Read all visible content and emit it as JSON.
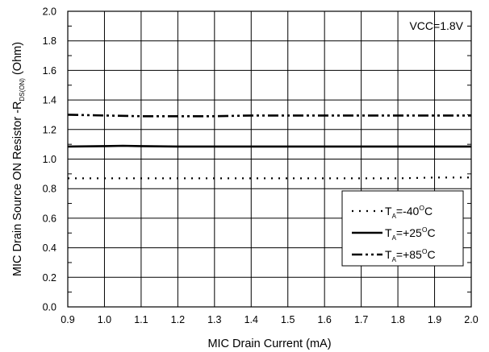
{
  "chart_data": {
    "type": "line",
    "xlabel": "MIC Drain Current (mA)",
    "ylabel": {
      "main": "MIC Drain Source ON Resistor -R",
      "sub": "DS(ON)",
      "unit": " (Ohm)"
    },
    "annotation": "VCC=1.8V",
    "xlim": [
      0.9,
      2.0
    ],
    "ylim": [
      0.0,
      2.0
    ],
    "xticks": [
      "0.9",
      "1.0",
      "1.1",
      "1.2",
      "1.3",
      "1.4",
      "1.5",
      "1.6",
      "1.7",
      "1.8",
      "1.9",
      "2.0"
    ],
    "yticks": [
      "0.0",
      "0.2",
      "0.4",
      "0.6",
      "0.8",
      "1.0",
      "1.2",
      "1.4",
      "1.6",
      "1.8",
      "2.0"
    ],
    "grid": true,
    "legend_position": "bottom-right",
    "series": [
      {
        "name": {
          "prefix": "T",
          "sub": "A",
          "value": "=-40",
          "sup": "O",
          "unit": "C"
        },
        "style": "dotted",
        "x": [
          0.9,
          1.0,
          1.1,
          1.2,
          1.3,
          1.4,
          1.5,
          1.6,
          1.7,
          1.8,
          1.9,
          2.0
        ],
        "y": [
          0.87,
          0.87,
          0.87,
          0.87,
          0.87,
          0.87,
          0.87,
          0.87,
          0.87,
          0.87,
          0.875,
          0.875
        ]
      },
      {
        "name": {
          "prefix": "T",
          "sub": "A",
          "value": "=+25",
          "sup": "O",
          "unit": "C"
        },
        "style": "solid",
        "x": [
          0.9,
          1.0,
          1.05,
          1.1,
          1.2,
          1.3,
          1.4,
          1.5,
          1.6,
          1.7,
          1.8,
          1.9,
          2.0
        ],
        "y": [
          1.085,
          1.088,
          1.09,
          1.088,
          1.085,
          1.085,
          1.085,
          1.085,
          1.085,
          1.085,
          1.085,
          1.085,
          1.085
        ]
      },
      {
        "name": {
          "prefix": "T",
          "sub": "A",
          "value": "=+85",
          "sup": "O",
          "unit": "C"
        },
        "style": "dash-dot-dot",
        "x": [
          0.9,
          1.0,
          1.1,
          1.2,
          1.3,
          1.4,
          1.5,
          1.6,
          1.7,
          1.8,
          1.9,
          2.0
        ],
        "y": [
          1.3,
          1.295,
          1.29,
          1.29,
          1.29,
          1.295,
          1.295,
          1.295,
          1.295,
          1.295,
          1.295,
          1.295
        ]
      }
    ]
  }
}
